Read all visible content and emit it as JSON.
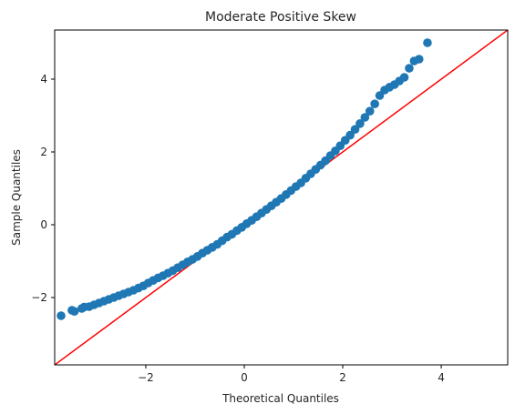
{
  "chart_data": {
    "type": "scatter",
    "title": "Moderate Positive Skew",
    "xlabel": "Theoretical Quantiles",
    "ylabel": "Sample Quantiles",
    "xlim": [
      -3.85,
      5.35
    ],
    "ylim": [
      -3.85,
      5.35
    ],
    "xticks": [
      -2,
      0,
      2,
      4
    ],
    "yticks": [
      -2,
      0,
      2,
      4
    ],
    "xtick_labels": [
      "−2",
      "0",
      "2",
      "4"
    ],
    "ytick_labels": [
      "−2",
      "0",
      "2",
      "4"
    ],
    "grid": false,
    "legend": "none",
    "marker_color": "#1f77b4",
    "reference_line_color": "#ff0000",
    "reference_line": {
      "x": [
        -3.85,
        5.35
      ],
      "y": [
        -3.85,
        5.35
      ]
    },
    "points": {
      "x": [
        -3.72,
        -3.5,
        -3.45,
        -3.3,
        -3.25,
        -3.15,
        -3.05,
        -2.95,
        -2.85,
        -2.75,
        -2.65,
        -2.55,
        -2.45,
        -2.35,
        -2.25,
        -2.15,
        -2.05,
        -1.95,
        -1.85,
        -1.75,
        -1.65,
        -1.55,
        -1.45,
        -1.35,
        -1.25,
        -1.15,
        -1.05,
        -0.95,
        -0.85,
        -0.75,
        -0.65,
        -0.55,
        -0.45,
        -0.35,
        -0.25,
        -0.15,
        -0.05,
        0.05,
        0.15,
        0.25,
        0.35,
        0.45,
        0.55,
        0.65,
        0.75,
        0.85,
        0.95,
        1.05,
        1.15,
        1.25,
        1.35,
        1.45,
        1.55,
        1.65,
        1.75,
        1.85,
        1.95,
        2.05,
        2.15,
        2.25,
        2.35,
        2.45,
        2.55,
        2.65,
        2.75,
        2.85,
        2.95,
        3.05,
        3.15,
        3.25,
        3.35,
        3.45,
        3.55,
        3.72
      ],
      "y": [
        -2.5,
        -2.35,
        -2.38,
        -2.3,
        -2.26,
        -2.25,
        -2.2,
        -2.15,
        -2.1,
        -2.05,
        -2.0,
        -1.95,
        -1.9,
        -1.85,
        -1.8,
        -1.74,
        -1.68,
        -1.6,
        -1.53,
        -1.46,
        -1.4,
        -1.33,
        -1.26,
        -1.18,
        -1.1,
        -1.02,
        -0.95,
        -0.87,
        -0.78,
        -0.7,
        -0.62,
        -0.54,
        -0.44,
        -0.34,
        -0.26,
        -0.16,
        -0.07,
        0.03,
        0.12,
        0.22,
        0.32,
        0.42,
        0.52,
        0.62,
        0.72,
        0.83,
        0.94,
        1.05,
        1.15,
        1.28,
        1.4,
        1.52,
        1.64,
        1.76,
        1.9,
        2.03,
        2.17,
        2.32,
        2.46,
        2.62,
        2.78,
        2.95,
        3.12,
        3.32,
        3.55,
        3.7,
        3.78,
        3.85,
        3.95,
        4.05,
        4.3,
        4.5,
        4.55,
        5.0
      ]
    }
  }
}
